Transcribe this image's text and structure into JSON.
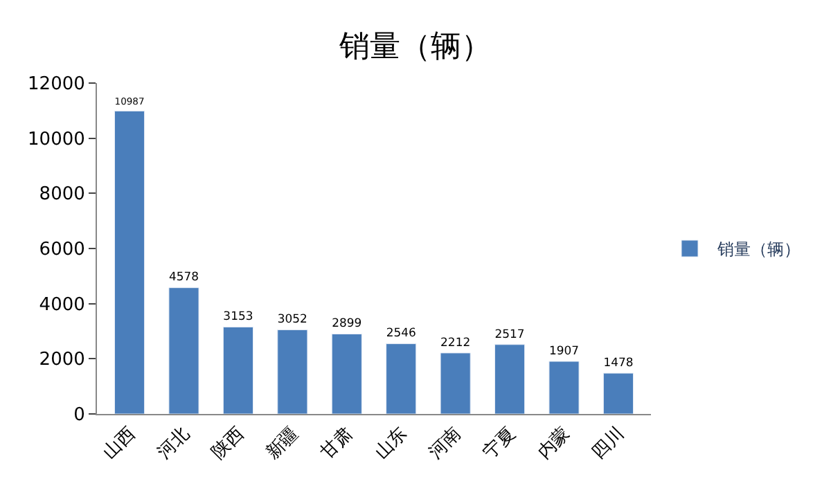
{
  "chart_data": {
    "type": "bar",
    "title": "销量（辆）",
    "categories": [
      "山西",
      "河北",
      "陕西",
      "新疆",
      "甘肃",
      "山东",
      "河南",
      "宁夏",
      "内蒙",
      "四川"
    ],
    "series": [
      {
        "name": "销量（辆）",
        "color": "#4a7ebb",
        "values": [
          10987,
          4578,
          3153,
          3052,
          2899,
          2546,
          2212,
          2517,
          1907,
          1478
        ]
      }
    ],
    "ylim": [
      0,
      12000
    ],
    "yticks": [
      0,
      2000,
      4000,
      6000,
      8000,
      10000,
      12000
    ],
    "data_labels": true,
    "grid": false,
    "legend": "right"
  }
}
